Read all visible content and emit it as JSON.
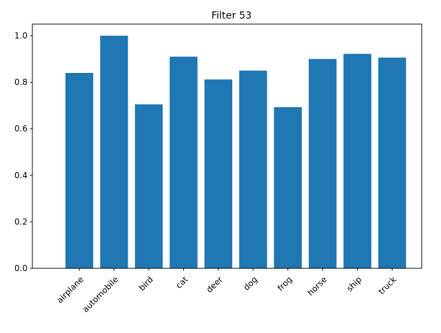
{
  "chart_data": {
    "type": "bar",
    "title": "Filter 53",
    "xlabel": "",
    "ylabel": "",
    "categories": [
      "airplane",
      "automobile",
      "bird",
      "cat",
      "deer",
      "dog",
      "frog",
      "horse",
      "ship",
      "truck"
    ],
    "values": [
      0.84,
      1.0,
      0.705,
      0.91,
      0.812,
      0.85,
      0.693,
      0.9,
      0.922,
      0.906
    ],
    "ylim": [
      0,
      1.05
    ],
    "yticks": [
      "0.0",
      "0.2",
      "0.4",
      "0.6",
      "0.8",
      "1.0"
    ],
    "bar_color": "#1f77b4",
    "grid": false,
    "legend": "none"
  }
}
